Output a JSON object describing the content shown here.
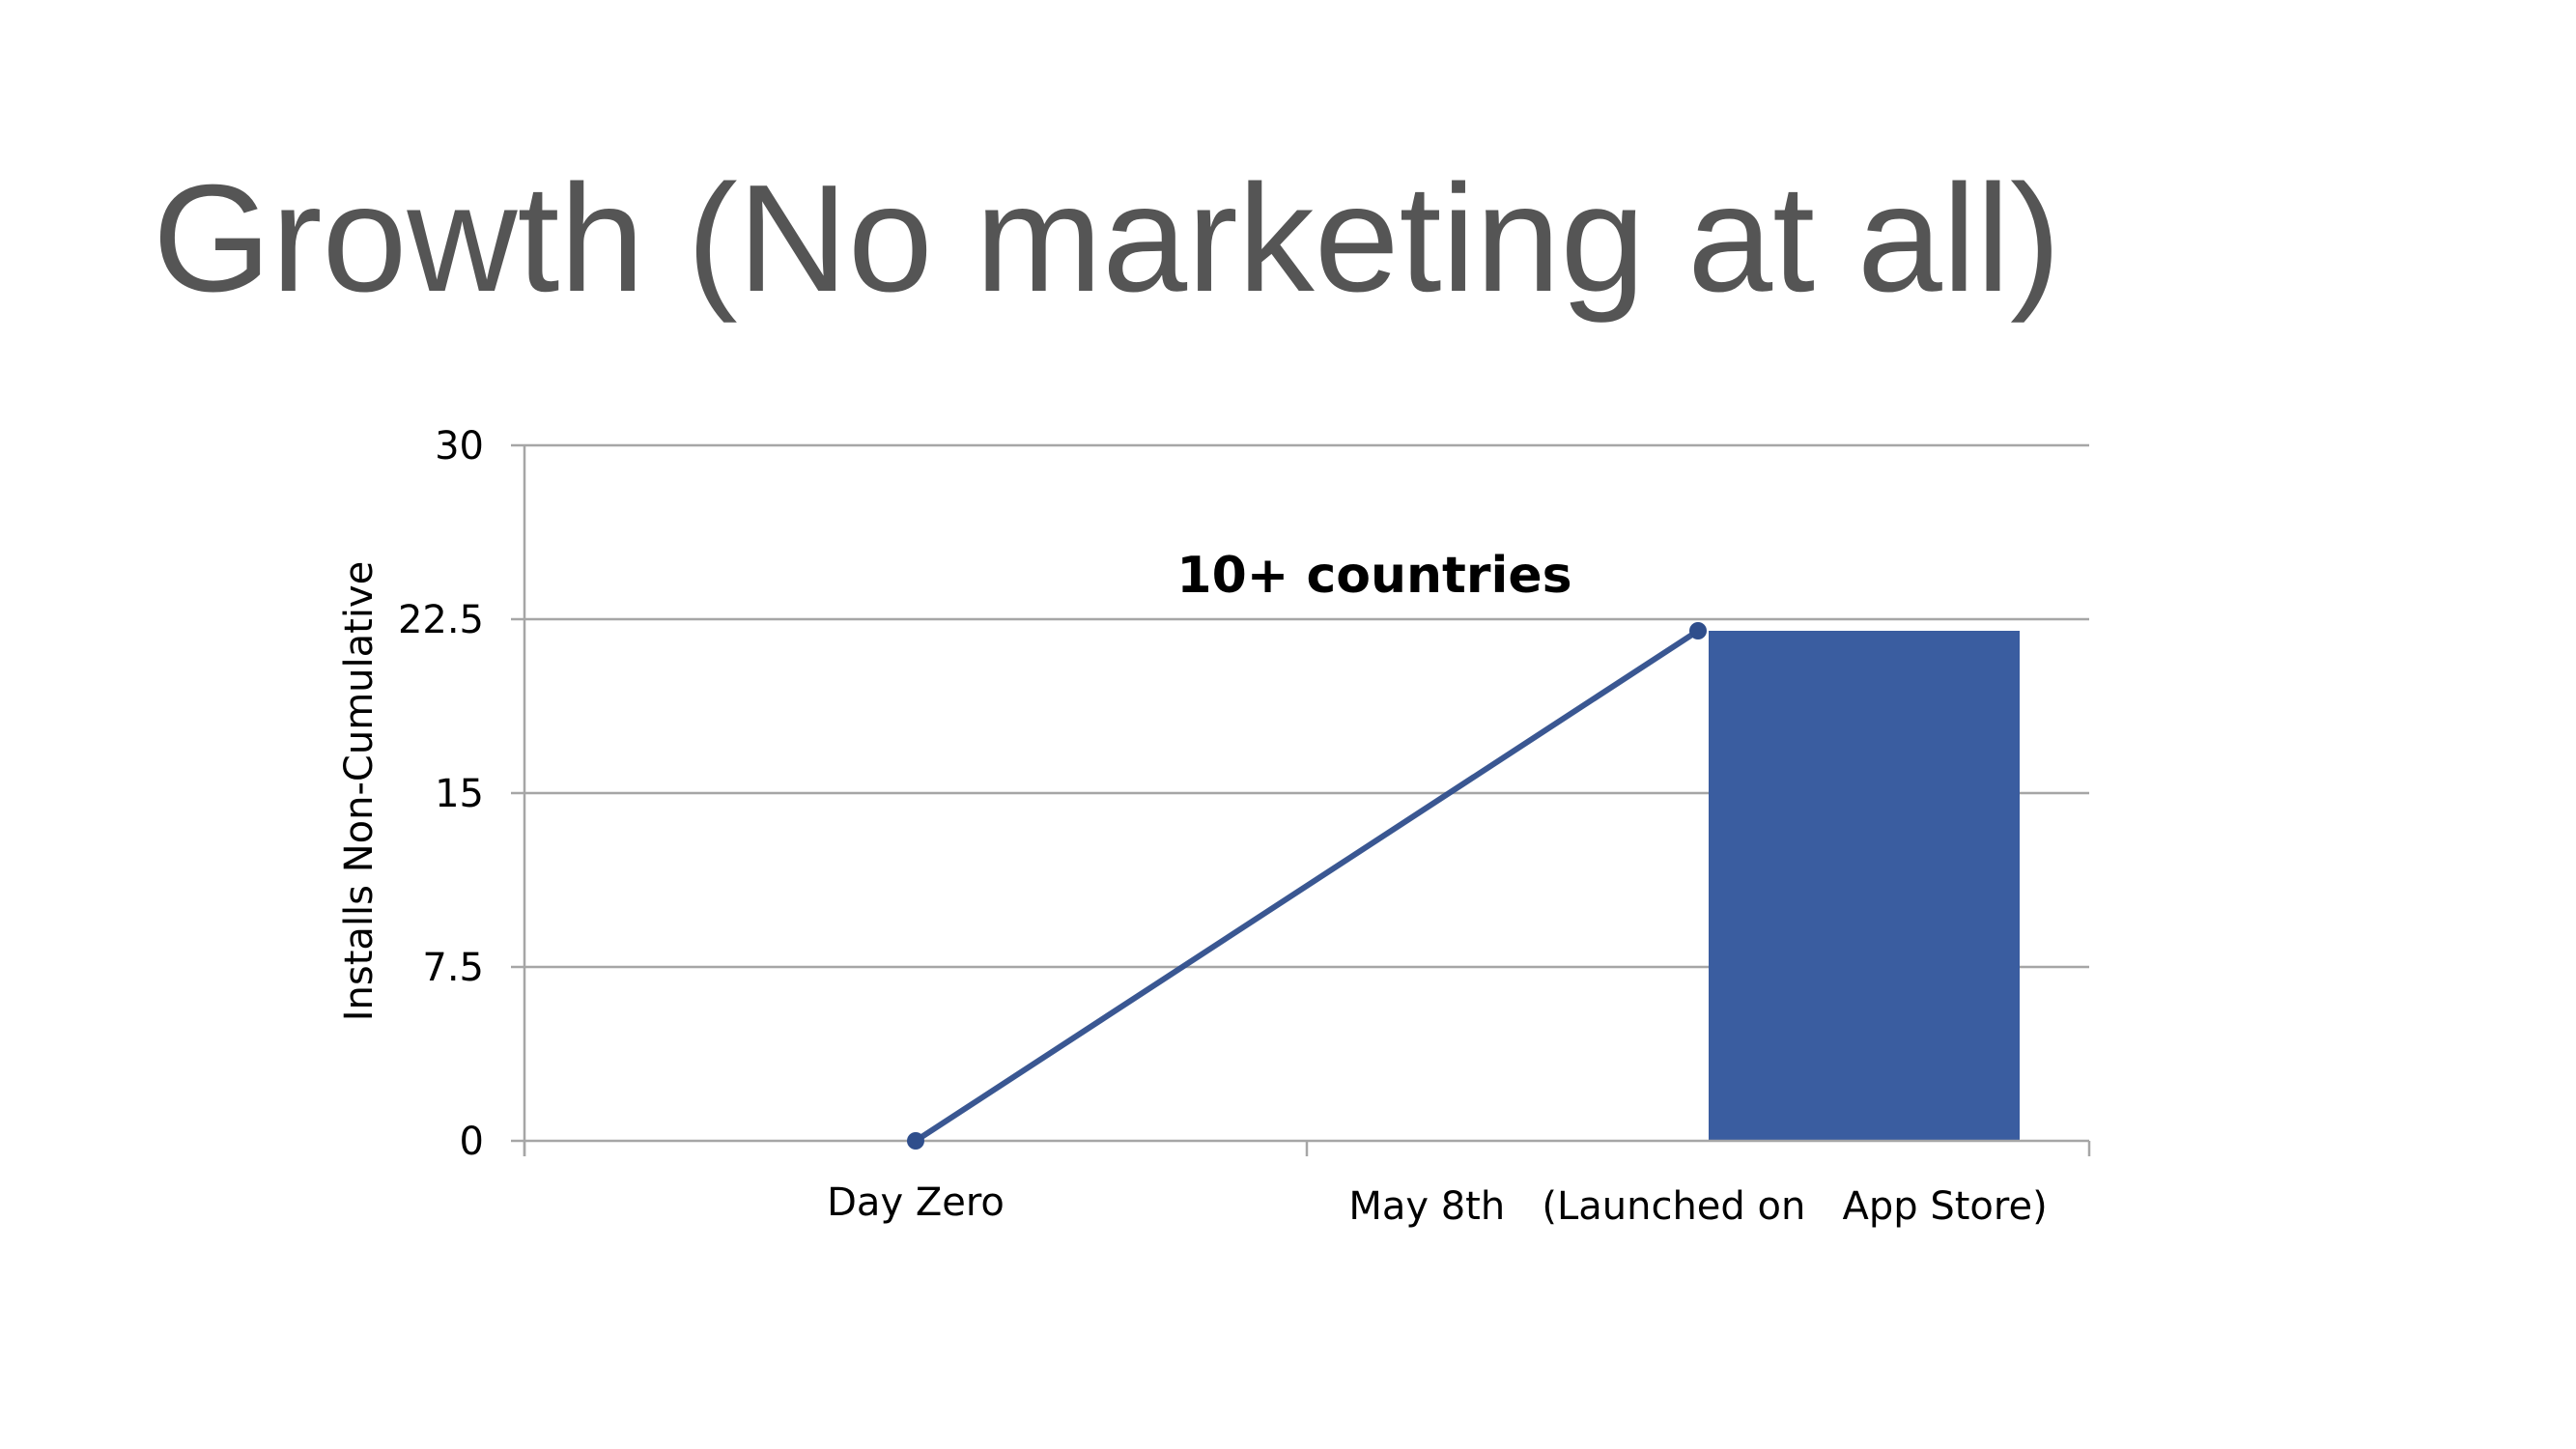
{
  "title": "Growth (No marketing at all)",
  "chart_data": {
    "type": "bar",
    "categories": [
      "Day Zero",
      "May 8th   (Launched on   App Store)"
    ],
    "series": [
      {
        "type": "bar",
        "values": [
          0,
          22
        ]
      },
      {
        "type": "line",
        "values": [
          0,
          22
        ]
      }
    ],
    "ylabel": "Installs Non-Cumulative",
    "ylim": [
      0,
      30
    ],
    "yticks": [
      "0",
      "7.5",
      "15",
      "22.5",
      "30"
    ],
    "grid": true,
    "annotations": [
      {
        "text": "10+ countries",
        "category_index": 1
      }
    ],
    "colors": {
      "bar": "#3A5DA0",
      "line": "#2F4E8C",
      "grid": "#A6A6A6"
    }
  }
}
